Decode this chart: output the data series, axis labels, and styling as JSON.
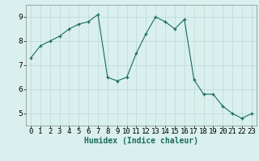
{
  "x": [
    0,
    1,
    2,
    3,
    4,
    5,
    6,
    7,
    8,
    9,
    10,
    11,
    12,
    13,
    14,
    15,
    16,
    17,
    18,
    19,
    20,
    21,
    22,
    23
  ],
  "y": [
    7.3,
    7.8,
    8.0,
    8.2,
    8.5,
    8.7,
    8.8,
    9.1,
    6.5,
    6.35,
    6.5,
    7.5,
    8.3,
    9.0,
    8.8,
    8.5,
    8.9,
    6.4,
    5.8,
    5.8,
    5.3,
    5.0,
    4.8,
    5.0
  ],
  "xlabel": "Humidex (Indice chaleur)",
  "bg_color": "#d9f0ee",
  "grid_color": "#c0dcd8",
  "line_color": "#1a6b5a",
  "marker": "+",
  "ylim": [
    4.5,
    9.5
  ],
  "xlim": [
    -0.5,
    23.5
  ],
  "yticks": [
    5,
    6,
    7,
    8,
    9
  ],
  "xticks": [
    0,
    1,
    2,
    3,
    4,
    5,
    6,
    7,
    8,
    9,
    10,
    11,
    12,
    13,
    14,
    15,
    16,
    17,
    18,
    19,
    20,
    21,
    22,
    23
  ],
  "xlabel_fontsize": 7,
  "tick_fontsize": 6.5,
  "title_color": "#1a6b5a"
}
